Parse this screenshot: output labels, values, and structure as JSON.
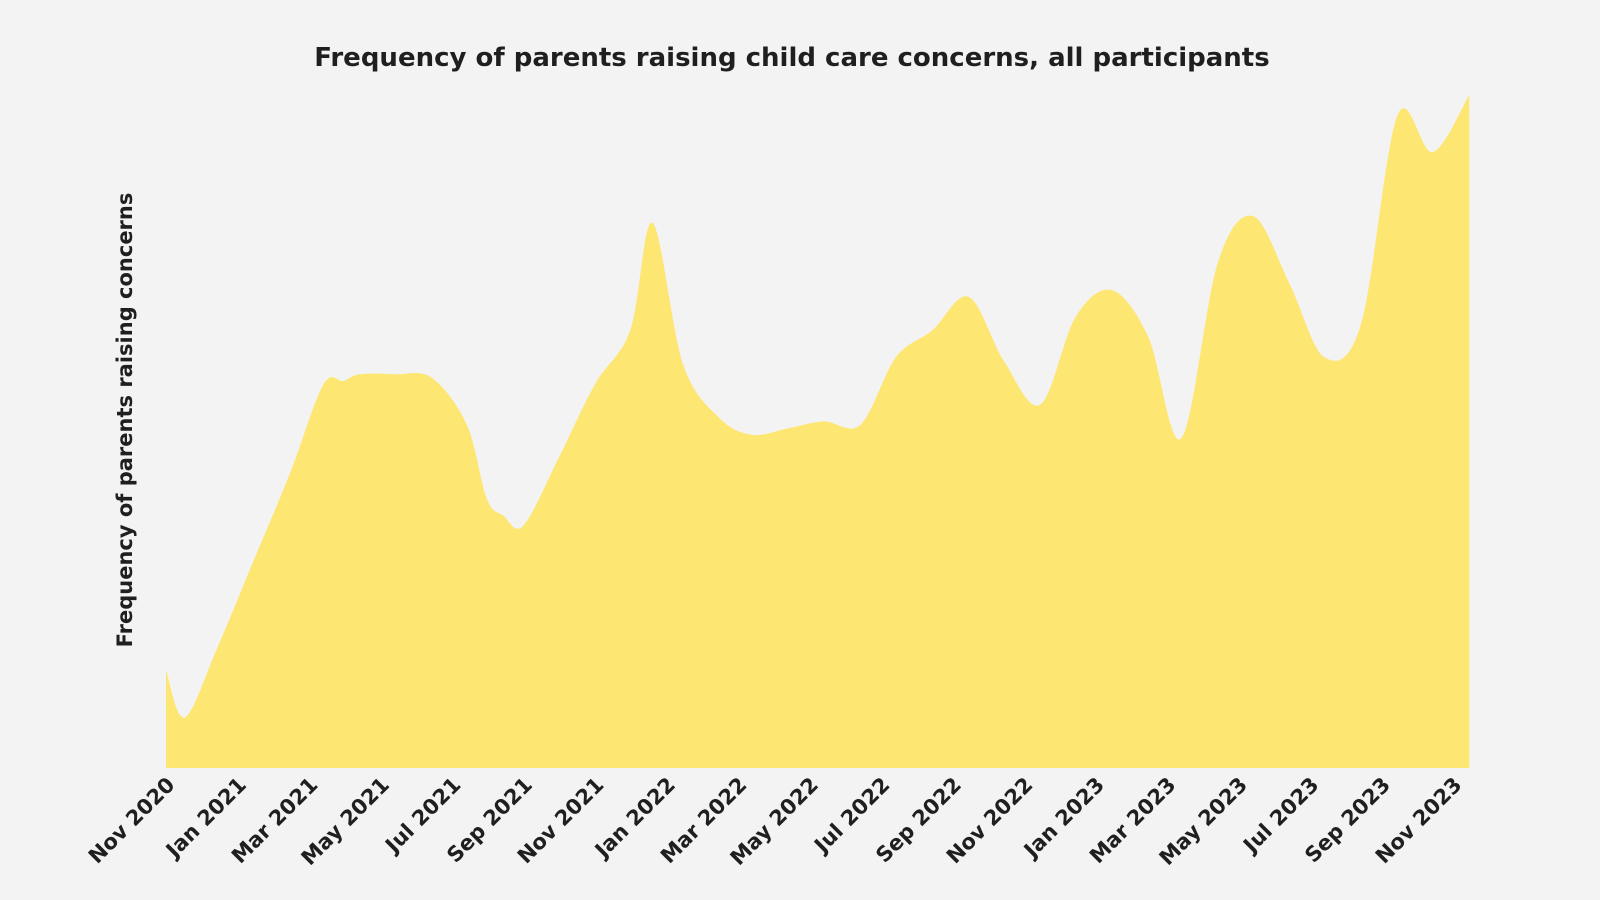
{
  "chart_data": {
    "type": "area",
    "title": "Frequency of parents raising child care concerns, all participants",
    "xlabel": "",
    "ylabel": "Frequency of parents raising concerns",
    "y_ticks_shown": false,
    "grid": false,
    "legend": "none",
    "color": "#fee672",
    "x_start": "2020-11",
    "x_end": "2023-12",
    "x_tick_labels": [
      "Nov 2020",
      "Jan 2021",
      "Mar 2021",
      "May 2021",
      "Jul 2021",
      "Sep 2021",
      "Nov 2021",
      "Jan 2022",
      "Mar 2022",
      "May 2022",
      "Jul 2022",
      "Sep 2022",
      "Nov 2022",
      "Jan 2023",
      "Mar 2023",
      "May 2023",
      "Jul 2023",
      "Sep 2023",
      "Nov 2023"
    ],
    "ylim": [
      0,
      100
    ],
    "series": [
      {
        "points": [
          [
            "2020-11",
            14.5
          ],
          [
            "2020-11-17",
            7.5
          ],
          [
            "2020-12-15",
            18
          ],
          [
            "2021-01-15",
            31
          ],
          [
            "2021-02-15",
            44
          ],
          [
            "2021-03-15",
            57
          ],
          [
            "2021-04-01",
            57.5
          ],
          [
            "2021-04-15",
            58.5
          ],
          [
            "2021-05-15",
            58.5
          ],
          [
            "2021-06-15",
            58
          ],
          [
            "2021-07-15",
            51
          ],
          [
            "2021-08-01",
            40
          ],
          [
            "2021-08-15",
            37.5
          ],
          [
            "2021-09-01",
            36
          ],
          [
            "2021-10-01",
            46
          ],
          [
            "2021-11-01",
            57
          ],
          [
            "2021-12-01",
            65
          ],
          [
            "2021-12-20",
            81
          ],
          [
            "2022-01-15",
            60
          ],
          [
            "2022-02-15",
            52
          ],
          [
            "2022-03-15",
            49.5
          ],
          [
            "2022-04-15",
            50.5
          ],
          [
            "2022-05-15",
            51.5
          ],
          [
            "2022-06-15",
            51
          ],
          [
            "2022-07-15",
            61
          ],
          [
            "2022-08-15",
            65
          ],
          [
            "2022-09-15",
            70
          ],
          [
            "2022-10-15",
            60.5
          ],
          [
            "2022-11-15",
            54
          ],
          [
            "2022-12-15",
            67
          ],
          [
            "2023-01-15",
            71
          ],
          [
            "2023-02-15",
            64
          ],
          [
            "2023-03-15",
            49
          ],
          [
            "2023-04-15",
            75
          ],
          [
            "2023-05-15",
            82
          ],
          [
            "2023-06-15",
            72
          ],
          [
            "2023-07-15",
            61
          ],
          [
            "2023-08-15",
            66
          ],
          [
            "2023-09-15",
            97
          ],
          [
            "2023-10-15",
            91.5
          ],
          [
            "2023-11-15",
            100
          ]
        ]
      }
    ]
  }
}
